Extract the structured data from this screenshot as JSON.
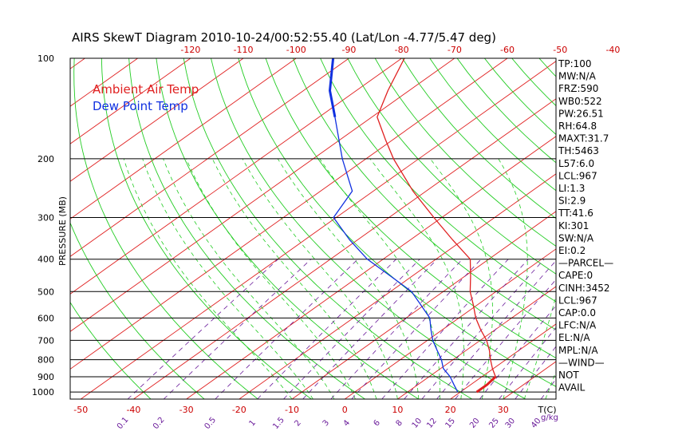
{
  "chart_data": {
    "type": "line",
    "title": "AIRS SkewT Diagram 2010-10-24/00:52:55.40 (Lat/Lon -4.77/5.47 deg)",
    "ylabel": "PRESSURE (MB)",
    "pressure_ticks": [
      100,
      200,
      300,
      400,
      500,
      600,
      700,
      800,
      900,
      1000
    ],
    "pressure_range": [
      1050,
      100
    ],
    "bottom_temp_ticks": [
      "-50",
      "-40",
      "-30",
      "-20",
      "-10",
      "0",
      "10",
      "20",
      "30"
    ],
    "bottom_temp_unit": "T(C)",
    "top_temp_ticks": [
      "-120",
      "-110",
      "-100",
      "-90",
      "-80",
      "-70",
      "-60",
      "-50",
      "-40"
    ],
    "mixing_ratio_labels": [
      "0.1",
      "0.2",
      "0.5",
      "1",
      "1.5",
      "2",
      "3",
      "4",
      "6",
      "8",
      "10",
      "12",
      "15",
      "20",
      "25",
      "30",
      "40"
    ],
    "mixing_ratio_unit": "g/kg",
    "bottom_temp_range": [
      -52,
      40
    ],
    "grid": true,
    "legend": "top-left",
    "series": [
      {
        "name": "Ambient Air Temp",
        "color": "#e02020",
        "points": [
          {
            "p": 1000,
            "t": 23.1
          },
          {
            "p": 950,
            "t": 23.1
          },
          {
            "p": 900,
            "t": 22.6
          },
          {
            "p": 850,
            "t": 19.8
          },
          {
            "p": 800,
            "t": 17.1
          },
          {
            "p": 750,
            "t": 14.4
          },
          {
            "p": 700,
            "t": 11.2
          },
          {
            "p": 650,
            "t": 7.2
          },
          {
            "p": 600,
            "t": 3.2
          },
          {
            "p": 550,
            "t": -0.6
          },
          {
            "p": 500,
            "t": -4.9
          },
          {
            "p": 450,
            "t": -8.9
          },
          {
            "p": 400,
            "t": -13.5
          },
          {
            "p": 350,
            "t": -22.0
          },
          {
            "p": 300,
            "t": -31.5
          },
          {
            "p": 250,
            "t": -42.5
          },
          {
            "p": 200,
            "t": -54.8
          },
          {
            "p": 175,
            "t": -61.5
          },
          {
            "p": 150,
            "t": -69.0
          },
          {
            "p": 125,
            "t": -74.0
          },
          {
            "p": 100,
            "t": -79.5
          }
        ]
      },
      {
        "name": "Dew Point Temp",
        "color": "#1030e0",
        "points": [
          {
            "p": 1000,
            "t": 19.5
          },
          {
            "p": 950,
            "t": 16.8
          },
          {
            "p": 900,
            "t": 14.0
          },
          {
            "p": 850,
            "t": 10.5
          },
          {
            "p": 800,
            "t": 7.8
          },
          {
            "p": 750,
            "t": 4.5
          },
          {
            "p": 700,
            "t": 1.0
          },
          {
            "p": 650,
            "t": -2.2
          },
          {
            "p": 600,
            "t": -5.5
          },
          {
            "p": 550,
            "t": -10.5
          },
          {
            "p": 500,
            "t": -16.0
          },
          {
            "p": 450,
            "t": -24.0
          },
          {
            "p": 400,
            "t": -33.0
          },
          {
            "p": 350,
            "t": -41.5
          },
          {
            "p": 300,
            "t": -50.5
          },
          {
            "p": 250,
            "t": -54.0
          },
          {
            "p": 200,
            "t": -64.5
          },
          {
            "p": 150,
            "t": -77.0
          },
          {
            "p": 125,
            "t": -85.0
          },
          {
            "p": 100,
            "t": -93.0
          }
        ]
      }
    ],
    "indices": [
      "TP:100",
      "MW:N/A",
      "FRZ:590",
      "WB0:522",
      "PW:26.51",
      "RH:64.8",
      "MAXT:31.7",
      "TH:5463",
      "L57:6.0",
      "LCL:967",
      "LI:1.3",
      "SI:2.9",
      "TT:41.6",
      "KI:301",
      "SW:N/A",
      "EI:0.2",
      "—PARCEL—",
      "CAPE:0",
      "CINH:3452",
      "LCL:967",
      "CAP:0.0",
      "LFC:N/A",
      "EL:N/A",
      "MPL:N/A",
      "—WIND—",
      "NOT",
      "AVAIL"
    ],
    "colors": {
      "isotherm": "#e02020",
      "dry_adiabat": "#22cc22",
      "moist_adiabat": "#22cc22",
      "mixing_ratio": "#6a1b9a",
      "isobar": "#000000",
      "temp": "#e02020",
      "dewpoint": "#1030e0"
    }
  }
}
